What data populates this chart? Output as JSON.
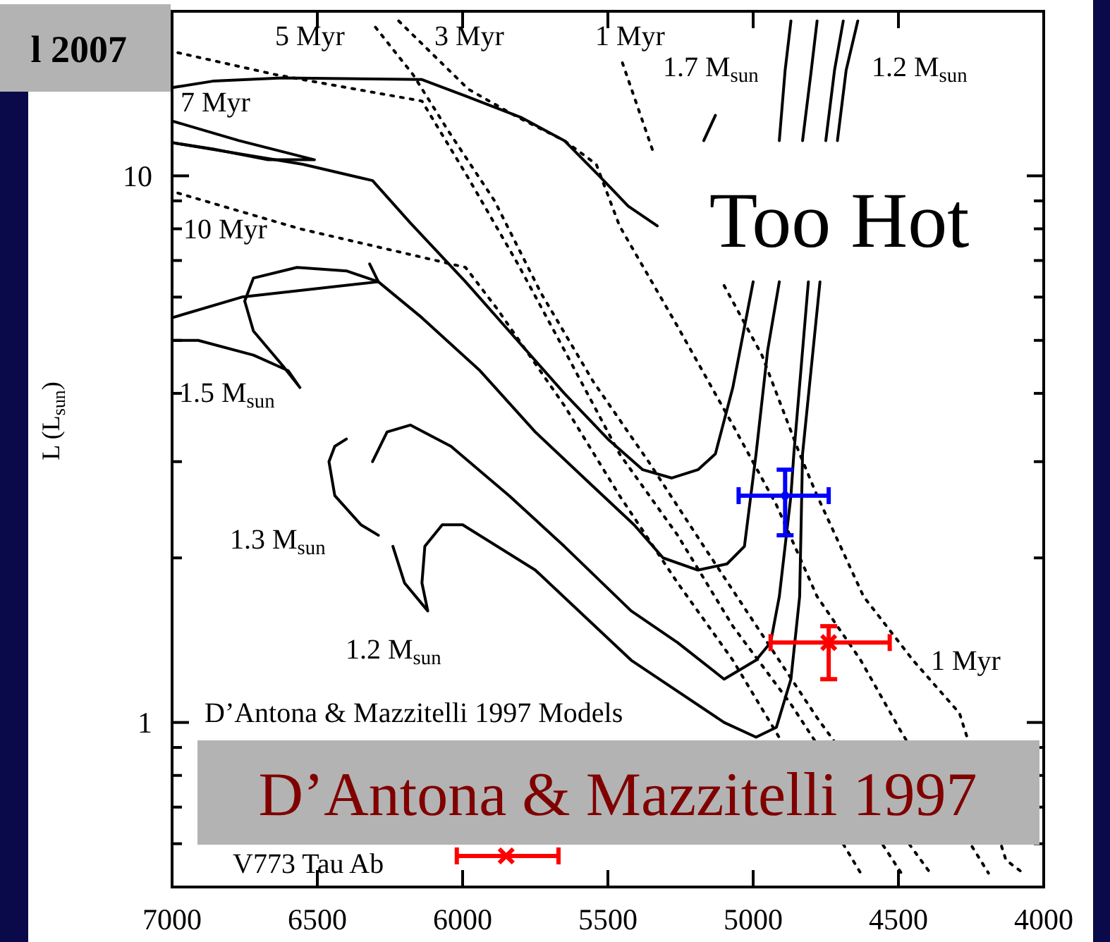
{
  "chart_data": {
    "type": "line",
    "subtitle": "l 2007",
    "title": "D’Antona & Mazzitelli 1997",
    "ylabel": "L (L$_{sun}$)",
    "xlim": [
      7000,
      4000
    ],
    "xticks": [
      7000,
      6500,
      6000,
      5500,
      5000,
      4500,
      4000
    ],
    "ylim": [
      0.5,
      20
    ],
    "yticks": [
      {
        "value": 0.5,
        "label": null
      },
      {
        "value": 0.6,
        "label": null
      },
      {
        "value": 0.7,
        "label": null
      },
      {
        "value": 0.8,
        "label": null
      },
      {
        "value": 0.9,
        "label": null
      },
      1,
      {
        "value": 2,
        "label": null
      },
      {
        "value": 3,
        "label": null
      },
      {
        "value": 4,
        "label": null
      },
      {
        "value": 5,
        "label": null
      },
      {
        "value": 6,
        "label": null
      },
      {
        "value": 7,
        "label": null
      },
      {
        "value": 8,
        "label": null
      },
      {
        "value": 9,
        "label": null
      },
      10,
      {
        "value": 20,
        "label": null
      }
    ],
    "log": "y",
    "grid": false,
    "series": [
      {
        "type": "line",
        "color": "#000000",
        "line_style": "solid",
        "x": [
          7000,
          6860,
          6620,
          6140,
          5990,
          5800,
          5650,
          5530,
          5430,
          5330,
          5250,
          5170,
          5130
        ],
        "values": [
          14.5,
          14.9,
          15.1,
          15.0,
          14.0,
          12.8,
          11.6,
          10,
          8.8,
          8.1,
          null,
          11.6,
          12.9
        ]
      },
      {
        "type": "line",
        "color": "#000000",
        "line_style": "solid",
        "x": [
          7000,
          6770,
          6510,
          6670,
          6860,
          7000
        ],
        "values": [
          12.6,
          11.6,
          10.7,
          10.7,
          11.2,
          11.5
        ]
      },
      {
        "type": "line",
        "color": "#000000",
        "line_style": "solid",
        "x": [
          7000,
          6550,
          6310,
          6180,
          5990,
          5840,
          5650,
          5500,
          5380,
          5280,
          5190,
          5130,
          5070,
          5000,
          4950,
          4910,
          4890,
          4870
        ],
        "values": [
          11.5,
          10.5,
          9.8,
          8.2,
          6.4,
          5.2,
          4.0,
          3.3,
          2.9,
          2.8,
          2.9,
          3.1,
          4.1,
          6.4,
          null,
          11.6,
          15.6,
          19.2
        ]
      },
      {
        "type": "line",
        "color": "#000000",
        "line_style": "solid",
        "x": [
          7000,
          6910,
          6720,
          6600,
          6560,
          6620,
          6720,
          6750,
          6720,
          6570,
          6400,
          6290,
          6320
        ],
        "values": [
          5.0,
          5.0,
          4.7,
          4.4,
          4.1,
          4.5,
          5.2,
          5.9,
          6.5,
          6.8,
          6.7,
          6.4,
          6.9
        ]
      },
      {
        "type": "line",
        "color": "#000000",
        "line_style": "solid",
        "x": [
          7000,
          6760,
          6290,
          6140,
          5940,
          5750,
          5550,
          5410,
          5310,
          5190,
          5090,
          5030,
          4990,
          4950,
          4910,
          4870,
          4830,
          4800,
          4780
        ],
        "values": [
          5.5,
          6.0,
          6.4,
          5.5,
          4.4,
          3.4,
          2.7,
          2.3,
          2.0,
          1.9,
          1.95,
          2.1,
          3.1,
          4.8,
          6.4,
          null,
          11.6,
          15.6,
          19.2
        ]
      },
      {
        "type": "line",
        "color": "#000000",
        "line_style": "solid",
        "x": [
          6400,
          6440,
          6460,
          6440,
          6350,
          6290
        ],
        "values": [
          3.3,
          3.2,
          3.0,
          2.6,
          2.3,
          2.2
        ]
      },
      {
        "type": "line",
        "color": "#000000",
        "line_style": "solid",
        "x": [
          6310,
          6260,
          6180,
          6040,
          5840,
          5650,
          5420,
          5260,
          5100,
          4990,
          4940,
          4910,
          4870,
          4860,
          4810,
          4780,
          4750,
          4720,
          4690
        ],
        "values": [
          3.0,
          3.4,
          3.5,
          3.2,
          2.6,
          2.1,
          1.6,
          1.4,
          1.2,
          1.3,
          1.4,
          1.7,
          2.6,
          3.1,
          6.4,
          null,
          11.6,
          15.6,
          19.2
        ]
      },
      {
        "type": "line",
        "color": "#000000",
        "line_style": "solid",
        "x": [
          6240,
          6200,
          6120,
          6140,
          6130,
          6070,
          6000,
          5750,
          5420,
          5100,
          4990,
          4920,
          4870,
          4840,
          4830,
          4770,
          4740,
          4710,
          4680,
          4640
        ],
        "values": [
          2.1,
          1.8,
          1.6,
          1.8,
          2.1,
          2.3,
          2.3,
          1.9,
          1.3,
          1.0,
          0.94,
          0.98,
          1.2,
          1.7,
          3.1,
          6.4,
          null,
          11.6,
          15.6,
          19.2
        ]
      },
      {
        "type": "line",
        "color": "#000000",
        "line_style": "dotted",
        "x": [
          5450,
          5340,
          5250,
          5100,
          4970,
          4840,
          4780,
          4620,
          4450,
          4290,
          4130,
          4070
        ],
        "values": [
          16.1,
          10.9,
          null,
          6.3,
          4.7,
          3.1,
          2.6,
          1.7,
          1.3,
          1.04,
          0.56,
          0.53
        ]
      },
      {
        "type": "line",
        "color": "#000000",
        "line_style": "dotted",
        "x": [
          6220,
          5980,
          5810,
          5650,
          5540,
          5460,
          5260,
          5070,
          4920,
          4780,
          4630,
          4490,
          4190
        ],
        "values": [
          19.2,
          14.4,
          12.8,
          11.6,
          10.5,
          8.1,
          5.3,
          3.5,
          2.5,
          1.7,
          1.3,
          0.96,
          0.53
        ]
      },
      {
        "type": "line",
        "color": "#000000",
        "line_style": "dotted",
        "x": [
          6300,
          6170,
          6050,
          5890,
          5730,
          5550,
          5360,
          5170,
          4970,
          4780,
          4390
        ],
        "values": [
          18.7,
          15.3,
          12.1,
          9.0,
          6.1,
          4.2,
          3.0,
          2.1,
          1.45,
          1.02,
          0.53
        ]
      },
      {
        "type": "line",
        "color": "#000000",
        "line_style": "dotted",
        "x": [
          6980,
          6640,
          6140,
          5980,
          5810,
          5650,
          5460,
          5260,
          5070,
          4870,
          4490
        ],
        "values": [
          16.8,
          15.3,
          13.7,
          9.9,
          6.9,
          4.8,
          3.1,
          2.2,
          1.5,
          1.08,
          0.53
        ]
      },
      {
        "type": "line",
        "color": "#000000",
        "line_style": "dotted",
        "x": [
          6980,
          6560,
          5990,
          5880,
          5650,
          5460,
          5260,
          5070,
          4630
        ],
        "values": [
          9.3,
          8.0,
          6.8,
          5.7,
          3.8,
          2.6,
          1.8,
          1.3,
          0.53
        ]
      },
      {
        "type": "scatter",
        "color": "#0000ff",
        "marker": "circle",
        "x": [
          4890
        ],
        "values": [
          2.6
        ],
        "errors": [
          [
            2.2,
            2.9
          ]
        ],
        "xerrors": [
          [
            4740,
            5050
          ]
        ]
      },
      {
        "type": "scatter",
        "color": "#ff0000",
        "marker": "cross",
        "x": [
          4740,
          5850
        ],
        "values": [
          1.4,
          0.57
        ],
        "errors": [
          [
            1.2,
            1.5
          ],
          null
        ],
        "xerrors": [
          [
            4530,
            4940
          ],
          [
            5670,
            6020
          ]
        ]
      }
    ],
    "annotations": [
      "Too Hot",
      "D’Antona & Mazzitelli 1997 Models",
      "5 Myr",
      "3 Myr",
      "1 Myr",
      "7 Myr",
      "10 Myr",
      "1.7 M$_{sun}$",
      "1.2 M$_{sun}$",
      "1.5 M$_{sun}$",
      "1.3 M$_{sun}$",
      "1.2 M$_{sun}$",
      "1 Myr",
      "V773 Tau Ab"
    ]
  }
}
